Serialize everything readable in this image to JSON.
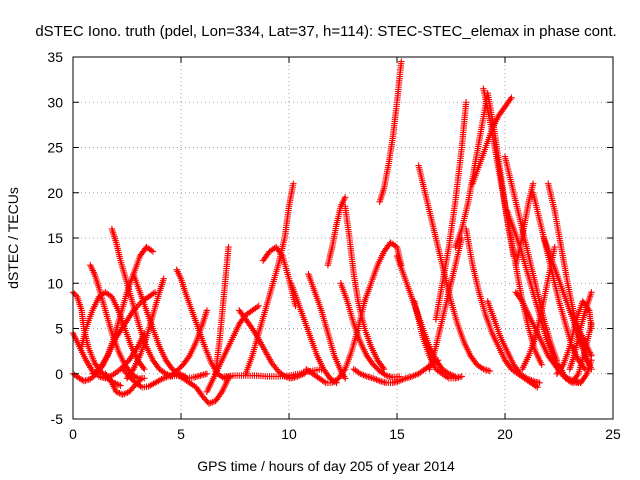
{
  "chart_data": {
    "type": "scatter",
    "title": "dSTEC Iono. truth (pdel, Lon=334, Lat=37, h=114): STEC-STEC_elemax in phase cont.",
    "xlabel": "GPS time / hours of day 205 of year 2014",
    "ylabel": "dSTEC  / TECUs",
    "xlim": [
      0,
      25
    ],
    "ylim": [
      -5,
      35
    ],
    "x_ticks": [
      "0",
      "5",
      "10",
      "15",
      "20",
      "25"
    ],
    "y_ticks": [
      "-5",
      "0",
      "5",
      "10",
      "15",
      "20",
      "25",
      "30",
      "35"
    ],
    "grid": true,
    "marker": "+",
    "color": "#ff0000",
    "arcs": [
      {
        "x": [
          0.0,
          0.2,
          0.4,
          0.5,
          0.7,
          1.0,
          1.3,
          1.6,
          1.9,
          2.2
        ],
        "y": [
          9.0,
          8.5,
          7.0,
          5.0,
          3.0,
          1.2,
          0.2,
          -0.5,
          -1.0,
          -1.3
        ]
      },
      {
        "x": [
          0.0,
          0.3,
          0.6,
          0.9,
          1.2,
          1.5,
          1.8,
          2.2,
          2.6,
          3.0,
          3.3
        ],
        "y": [
          4.5,
          3.0,
          1.5,
          0.3,
          -0.3,
          -0.5,
          -0.2,
          0.5,
          1.5,
          3.0,
          4.5
        ]
      },
      {
        "x": [
          0.0,
          0.3,
          0.5,
          0.8,
          1.1,
          1.4,
          1.7,
          2.0,
          2.4,
          2.8,
          3.2,
          3.5,
          3.8
        ],
        "y": [
          0.0,
          -0.5,
          -0.8,
          -0.6,
          0.0,
          1.0,
          2.5,
          4.0,
          5.5,
          7.0,
          8.0,
          8.5,
          9.0
        ]
      },
      {
        "x": [
          0.4,
          0.6,
          0.9,
          1.2,
          1.5,
          1.8,
          2.1,
          2.4,
          2.7,
          3.0,
          3.3
        ],
        "y": [
          3.0,
          5.0,
          7.0,
          8.5,
          9.0,
          8.5,
          7.0,
          5.0,
          3.0,
          1.5,
          0.5
        ]
      },
      {
        "x": [
          0.8,
          1.0,
          1.2,
          1.5,
          1.8,
          2.1,
          2.4,
          2.7,
          3.0,
          3.3
        ],
        "y": [
          12.0,
          11.0,
          9.5,
          7.0,
          4.5,
          2.5,
          1.0,
          0.0,
          -0.5,
          -0.5
        ]
      },
      {
        "x": [
          0.9,
          1.1,
          1.3,
          1.6,
          1.9,
          2.2,
          2.5,
          2.8,
          3.1,
          3.4,
          3.7
        ],
        "y": [
          0.0,
          0.3,
          0.8,
          2.0,
          4.0,
          6.5,
          9.0,
          11.0,
          13.0,
          14.0,
          13.5
        ]
      },
      {
        "x": [
          1.8,
          2.0,
          2.2,
          2.5,
          2.8,
          3.1,
          3.4,
          3.7,
          4.0,
          4.3,
          4.6
        ],
        "y": [
          16.0,
          14.5,
          12.5,
          10.0,
          7.5,
          5.0,
          3.0,
          1.5,
          0.5,
          0.0,
          -0.3
        ]
      },
      {
        "x": [
          1.5,
          1.8,
          2.0,
          2.3,
          2.6,
          2.9,
          3.2
        ],
        "y": [
          0.0,
          -1.0,
          -2.0,
          -2.3,
          -2.0,
          -1.2,
          -0.5
        ]
      },
      {
        "x": [
          2.3,
          2.6,
          2.9,
          3.2,
          3.5,
          3.8,
          4.1,
          4.4,
          4.7,
          5.0,
          5.3,
          5.6,
          5.9,
          6.2
        ],
        "y": [
          0.5,
          -0.3,
          -1.0,
          -1.5,
          -1.4,
          -1.0,
          -0.6,
          -0.3,
          -0.2,
          -0.3,
          -0.5,
          -0.4,
          -0.2,
          0.0
        ]
      },
      {
        "x": [
          2.5,
          2.8,
          3.1,
          3.4,
          3.7,
          4.0,
          4.2
        ],
        "y": [
          -0.5,
          0.5,
          2.0,
          4.0,
          6.5,
          9.0,
          10.5
        ]
      },
      {
        "x": [
          2.8,
          3.1,
          3.4,
          3.7,
          4.0,
          4.3,
          4.6,
          4.9,
          5.2
        ],
        "y": [
          11.0,
          9.0,
          7.0,
          5.0,
          3.0,
          1.5,
          0.5,
          0.0,
          -0.3
        ]
      },
      {
        "x": [
          4.5,
          4.8,
          5.1,
          5.4,
          5.7,
          6.0,
          6.2
        ],
        "y": [
          -0.3,
          0.3,
          1.0,
          2.0,
          3.5,
          5.5,
          7.0
        ]
      },
      {
        "x": [
          4.8,
          5.0,
          5.2,
          5.5,
          5.8,
          6.1,
          6.4,
          6.7,
          7.0,
          7.3
        ],
        "y": [
          11.5,
          10.5,
          9.0,
          7.0,
          5.0,
          3.0,
          1.2,
          0.0,
          -0.5,
          -0.3
        ]
      },
      {
        "x": [
          4.8,
          5.1,
          5.4,
          5.7,
          6.0,
          6.3,
          6.6,
          6.9,
          7.2
        ],
        "y": [
          0.0,
          -0.5,
          -1.0,
          -1.5,
          -2.5,
          -3.3,
          -3.0,
          -2.0,
          -0.5
        ]
      },
      {
        "x": [
          6.2,
          6.5,
          6.8,
          7.1,
          7.4,
          7.7,
          8.0,
          8.3,
          8.6
        ],
        "y": [
          -2.0,
          -0.5,
          1.0,
          2.5,
          4.0,
          5.5,
          6.5,
          7.0,
          7.5
        ]
      },
      {
        "x": [
          6.6,
          6.8,
          7.0,
          7.2
        ],
        "y": [
          0.0,
          4.0,
          9.0,
          14.0
        ]
      },
      {
        "x": [
          7.0,
          7.5,
          8.0,
          8.5,
          9.0,
          9.5,
          10.0,
          10.5,
          11.0,
          11.5
        ],
        "y": [
          -0.3,
          -0.2,
          -0.2,
          -0.2,
          -0.3,
          -0.3,
          -0.2,
          0.0,
          0.3,
          0.5
        ]
      },
      {
        "x": [
          7.7,
          8.0,
          8.3,
          8.6,
          8.9,
          9.2,
          9.5,
          9.8,
          10.1,
          10.4,
          10.7
        ],
        "y": [
          7.0,
          6.0,
          5.0,
          3.8,
          2.5,
          1.2,
          0.3,
          -0.3,
          -0.5,
          -0.3,
          0.0
        ]
      },
      {
        "x": [
          8.0,
          8.3,
          8.6,
          8.9,
          9.2,
          9.5,
          9.8,
          10.0,
          10.2
        ],
        "y": [
          0.0,
          2.0,
          4.5,
          7.0,
          9.5,
          12.0,
          15.0,
          18.5,
          21.0
        ]
      },
      {
        "x": [
          8.8,
          9.1,
          9.4,
          9.7,
          10.0,
          10.3
        ],
        "y": [
          12.5,
          13.5,
          14.0,
          13.0,
          10.5,
          7.5
        ]
      },
      {
        "x": [
          10.1,
          10.4,
          10.7,
          11.0,
          11.3,
          11.6,
          11.9,
          12.2
        ],
        "y": [
          10.0,
          8.0,
          6.0,
          4.0,
          2.0,
          0.5,
          -0.5,
          -1.0
        ]
      },
      {
        "x": [
          10.9,
          11.2,
          11.5,
          11.8,
          12.1,
          12.4,
          12.6
        ],
        "y": [
          11.0,
          9.0,
          7.0,
          4.5,
          2.0,
          0.3,
          -0.5
        ]
      },
      {
        "x": [
          10.8,
          11.1,
          11.4,
          11.7,
          12.0,
          12.3,
          12.6,
          12.9,
          13.2,
          13.5
        ],
        "y": [
          0.5,
          0.0,
          -0.5,
          -1.0,
          -1.0,
          -0.5,
          0.5,
          2.5,
          5.0,
          8.0
        ]
      },
      {
        "x": [
          11.8,
          12.0,
          12.2,
          12.4,
          12.6
        ],
        "y": [
          12.0,
          14.0,
          16.5,
          18.5,
          19.5
        ]
      },
      {
        "x": [
          12.4,
          12.7,
          13.0,
          13.3,
          13.6,
          13.9,
          14.2,
          14.5,
          14.8,
          15.1
        ],
        "y": [
          10.0,
          8.0,
          5.5,
          3.5,
          2.0,
          1.0,
          0.3,
          -0.2,
          -0.4,
          -0.3
        ]
      },
      {
        "x": [
          12.6,
          12.8,
          13.0,
          13.2,
          13.5,
          13.8,
          14.1,
          14.4
        ],
        "y": [
          18.5,
          15.0,
          11.0,
          8.0,
          5.0,
          3.0,
          1.5,
          0.5
        ]
      },
      {
        "x": [
          13.0,
          13.3,
          13.6,
          13.9,
          14.2,
          14.5,
          14.8,
          15.1,
          15.4,
          15.7,
          16.0,
          16.3,
          16.6,
          16.9
        ],
        "y": [
          0.5,
          0.0,
          -0.3,
          -0.5,
          -0.8,
          -1.0,
          -1.0,
          -0.8,
          -0.5,
          -0.3,
          0.0,
          0.5,
          1.0,
          1.5
        ]
      },
      {
        "x": [
          13.5,
          13.8,
          14.1,
          14.4,
          14.7,
          15.0,
          15.2
        ],
        "y": [
          8.0,
          10.0,
          12.0,
          13.5,
          14.5,
          14.0,
          12.0
        ]
      },
      {
        "x": [
          14.2,
          14.4,
          14.6,
          14.8,
          15.0,
          15.2
        ],
        "y": [
          19.0,
          20.5,
          23.0,
          26.0,
          30.0,
          34.5
        ]
      },
      {
        "x": [
          15.0,
          15.3,
          15.6,
          15.9,
          16.2,
          16.5,
          16.8,
          17.1,
          17.4,
          17.7
        ],
        "y": [
          13.0,
          11.0,
          9.0,
          7.0,
          5.0,
          3.0,
          1.5,
          0.5,
          0.0,
          -0.3
        ]
      },
      {
        "x": [
          15.8,
          16.0,
          16.2,
          16.5,
          16.8,
          17.1,
          17.4,
          17.7,
          18.0
        ],
        "y": [
          8.0,
          6.0,
          4.0,
          2.0,
          0.5,
          0.0,
          -0.5,
          -0.5,
          -0.3
        ]
      },
      {
        "x": [
          16.0,
          16.3,
          16.6,
          16.9,
          17.2,
          17.5,
          17.8,
          18.1,
          18.4,
          18.7,
          19.0,
          19.3
        ],
        "y": [
          23.0,
          20.0,
          17.0,
          14.0,
          11.0,
          8.0,
          5.5,
          3.5,
          2.0,
          1.0,
          0.5,
          0.3
        ]
      },
      {
        "x": [
          16.5,
          16.8,
          17.1,
          17.4,
          17.7,
          18.0
        ],
        "y": [
          0.5,
          3.0,
          6.0,
          9.0,
          12.0,
          15.0
        ]
      },
      {
        "x": [
          16.8,
          17.1,
          17.4,
          17.7,
          18.0,
          18.2
        ],
        "y": [
          6.0,
          10.0,
          14.0,
          19.0,
          25.0,
          30.0
        ]
      },
      {
        "x": [
          17.7,
          18.0,
          18.3,
          18.6,
          18.9,
          19.2,
          19.5,
          19.8,
          20.1,
          20.4
        ],
        "y": [
          14.0,
          16.0,
          19.0,
          23.0,
          27.0,
          31.0,
          27.0,
          22.0,
          17.0,
          13.0
        ]
      },
      {
        "x": [
          18.5,
          18.8,
          19.1,
          19.4,
          19.7,
          20.0,
          20.3
        ],
        "y": [
          21.0,
          23.0,
          25.0,
          27.0,
          28.5,
          29.5,
          30.5
        ]
      },
      {
        "x": [
          18.2,
          18.5,
          18.8,
          19.1,
          19.4,
          19.7,
          20.0,
          20.3,
          20.6,
          20.9,
          21.2,
          21.5
        ],
        "y": [
          16.0,
          12.0,
          9.0,
          6.5,
          4.5,
          3.0,
          1.5,
          0.5,
          0.0,
          -0.5,
          -1.0,
          -1.5
        ]
      },
      {
        "x": [
          19.0,
          19.3,
          19.6,
          19.9,
          20.2,
          20.5,
          20.8,
          21.1,
          21.4,
          21.7
        ],
        "y": [
          31.5,
          28.0,
          24.0,
          20.0,
          16.0,
          12.0,
          8.0,
          5.0,
          2.5,
          1.0
        ]
      },
      {
        "x": [
          19.2,
          19.5,
          19.8,
          20.1,
          20.4,
          20.7,
          21.0,
          21.3,
          21.6
        ],
        "y": [
          8.0,
          6.0,
          4.0,
          2.5,
          1.0,
          0.0,
          -0.5,
          -0.8,
          -1.0
        ]
      },
      {
        "x": [
          20.0,
          20.3,
          20.6,
          20.9,
          21.2,
          21.5,
          21.8,
          22.1,
          22.4
        ],
        "y": [
          24.0,
          21.0,
          18.0,
          15.0,
          12.0,
          9.0,
          6.0,
          3.5,
          1.5
        ]
      },
      {
        "x": [
          20.1,
          20.4,
          20.7,
          21.0,
          21.3,
          21.6,
          21.9,
          22.2,
          22.5
        ],
        "y": [
          18.0,
          16.0,
          14.0,
          11.5,
          9.0,
          6.5,
          4.0,
          2.0,
          0.5
        ]
      },
      {
        "x": [
          20.5,
          20.7,
          20.9,
          21.1,
          21.3
        ],
        "y": [
          12.0,
          14.0,
          16.5,
          19.0,
          21.0
        ]
      },
      {
        "x": [
          20.5,
          20.8,
          21.1,
          21.4,
          21.7,
          22.0,
          22.3,
          22.6,
          22.9,
          23.2,
          23.5
        ],
        "y": [
          9.0,
          8.0,
          6.5,
          5.0,
          3.5,
          2.0,
          1.0,
          0.0,
          -0.5,
          -0.8,
          -1.0
        ]
      },
      {
        "x": [
          20.8,
          21.1,
          21.4,
          21.7,
          22.0,
          22.3
        ],
        "y": [
          0.5,
          2.0,
          4.0,
          7.0,
          10.5,
          14.0
        ]
      },
      {
        "x": [
          21.3,
          21.6,
          21.9,
          22.2,
          22.5,
          22.8,
          23.1,
          23.4,
          23.7
        ],
        "y": [
          20.0,
          17.0,
          14.0,
          11.0,
          8.0,
          5.5,
          3.0,
          1.5,
          0.5
        ]
      },
      {
        "x": [
          21.8,
          22.1,
          22.4,
          22.7,
          23.0,
          23.3,
          23.6,
          23.9
        ],
        "y": [
          15.0,
          13.0,
          11.0,
          9.0,
          7.0,
          5.0,
          3.0,
          1.0
        ]
      },
      {
        "x": [
          22.0,
          22.3,
          22.6,
          22.9,
          23.2,
          23.5,
          23.8,
          24.0
        ],
        "y": [
          21.0,
          18.0,
          14.0,
          10.0,
          6.5,
          3.5,
          1.5,
          0.5
        ]
      },
      {
        "x": [
          22.5,
          22.8,
          23.1,
          23.4,
          23.7,
          24.0
        ],
        "y": [
          1.0,
          -0.5,
          -1.0,
          0.0,
          2.5,
          5.5
        ]
      },
      {
        "x": [
          23.0,
          23.2,
          23.4,
          23.6,
          23.8,
          24.0
        ],
        "y": [
          0.5,
          2.0,
          4.0,
          6.0,
          7.5,
          9.0
        ]
      },
      {
        "x": [
          23.0,
          23.3,
          23.6,
          23.9,
          24.0
        ],
        "y": [
          7.0,
          5.5,
          4.0,
          2.5,
          2.0
        ]
      },
      {
        "x": [
          22.4,
          22.7,
          23.0,
          23.3,
          23.6,
          23.9,
          24.0
        ],
        "y": [
          0.0,
          1.0,
          3.0,
          6.0,
          8.0,
          7.0,
          5.0
        ]
      },
      {
        "x": [
          23.2,
          23.5,
          23.8,
          24.0
        ],
        "y": [
          -1.0,
          -1.0,
          0.0,
          1.5
        ]
      }
    ]
  }
}
